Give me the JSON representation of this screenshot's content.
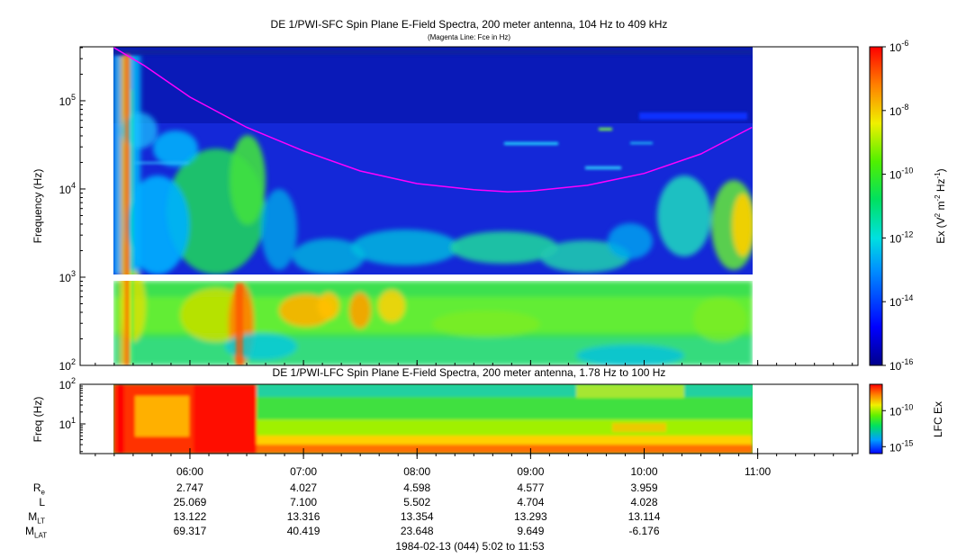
{
  "title": "DE 1/PWI-SFC  Spin Plane E-Field Spectra, 200 meter antenna, 104 Hz to 409 kHz",
  "subtitle": "(Magenta Line: Fce in Hz)",
  "lower_title": "DE 1/PWI-LFC  Spin Plane E-Field Spectra, 200 meter antenna, 1.78 Hz to 100 Hz",
  "footer": "1984-02-13 (044) 5:02 to 11:53",
  "colors": {
    "fce_line": "#ff00ff",
    "gap": "#ffffff"
  },
  "chart_data": [
    {
      "type": "heatmap",
      "title": "DE 1/PWI-SFC  Spin Plane E-Field Spectra, 200 meter antenna, 104 Hz to 409 kHz",
      "subtitle": "(Magenta Line: Fce in Hz)",
      "ylabel": "Frequency (Hz)",
      "yscale": "log",
      "ylim": [
        100,
        409000
      ],
      "yticks": [
        {
          "value": 100,
          "mant": "10",
          "exp": "2"
        },
        {
          "value": 1000,
          "mant": "10",
          "exp": "3"
        },
        {
          "value": 10000,
          "mant": "10",
          "exp": "4"
        },
        {
          "value": 100000,
          "mant": "10",
          "exp": "5"
        }
      ],
      "x_range_hours": [
        5.033,
        11.883
      ],
      "data_x_range_hours": [
        5.3,
        10.95
      ],
      "colorbar": {
        "label": "Ex (V² m⁻² Hz⁻¹)",
        "scale": "log",
        "range": [
          1e-16,
          1e-06
        ],
        "ticks": [
          {
            "value": 1e-06,
            "mant": "10",
            "exp": "-6"
          },
          {
            "value": 1e-08,
            "mant": "10",
            "exp": "-8"
          },
          {
            "value": 1e-10,
            "mant": "10",
            "exp": "-10"
          },
          {
            "value": 1e-12,
            "mant": "10",
            "exp": "-12"
          },
          {
            "value": 1e-14,
            "mant": "10",
            "exp": "-14"
          },
          {
            "value": 1e-16,
            "mant": "10",
            "exp": "-16"
          }
        ]
      },
      "fce_line": {
        "name": "Fce",
        "x_hours": [
          5.33,
          5.6,
          6.0,
          6.5,
          7.0,
          7.5,
          8.0,
          8.5,
          8.8,
          9.0,
          9.5,
          10.0,
          10.5,
          10.95
        ],
        "y_hz": [
          400000,
          250000,
          110000,
          50000,
          27000,
          16000,
          11500,
          9800,
          9300,
          9500,
          11000,
          15000,
          25000,
          50000
        ]
      }
    },
    {
      "type": "heatmap",
      "title": "DE 1/PWI-LFC  Spin Plane E-Field Spectra, 200 meter antenna, 1.78 Hz to 100 Hz",
      "ylabel": "Freq (Hz)",
      "yscale": "log",
      "ylim": [
        1.78,
        100
      ],
      "yticks": [
        {
          "value": 10,
          "mant": "10",
          "exp": "1"
        },
        {
          "value": 100,
          "mant": "10",
          "exp": "2"
        }
      ],
      "colorbar": {
        "label": "LFC Ex",
        "scale": "log",
        "ticks": [
          {
            "value": 1e-10,
            "mant": "10",
            "exp": "-10"
          },
          {
            "value": 1e-15,
            "mant": "10",
            "exp": "-15"
          }
        ]
      }
    }
  ],
  "x_axis": {
    "ticks": [
      {
        "hour": 6,
        "label": "06:00"
      },
      {
        "hour": 7,
        "label": "07:00"
      },
      {
        "hour": 8,
        "label": "08:00"
      },
      {
        "hour": 9,
        "label": "09:00"
      },
      {
        "hour": 10,
        "label": "10:00"
      },
      {
        "hour": 11,
        "label": "11:00"
      }
    ]
  },
  "ephemeris": {
    "rows": [
      {
        "name": "R",
        "sub": "e",
        "values": [
          "2.747",
          "4.027",
          "4.598",
          "4.577",
          "3.959"
        ]
      },
      {
        "name": "L",
        "sub": "",
        "values": [
          "25.069",
          "7.100",
          "5.502",
          "4.704",
          "4.028"
        ]
      },
      {
        "name": "M",
        "sub": "LT",
        "values": [
          "13.122",
          "13.316",
          "13.354",
          "13.293",
          "13.114"
        ]
      },
      {
        "name": "M",
        "sub": "LAT",
        "values": [
          "69.317",
          "40.419",
          "23.648",
          "9.649",
          "-6.176"
        ]
      }
    ]
  }
}
